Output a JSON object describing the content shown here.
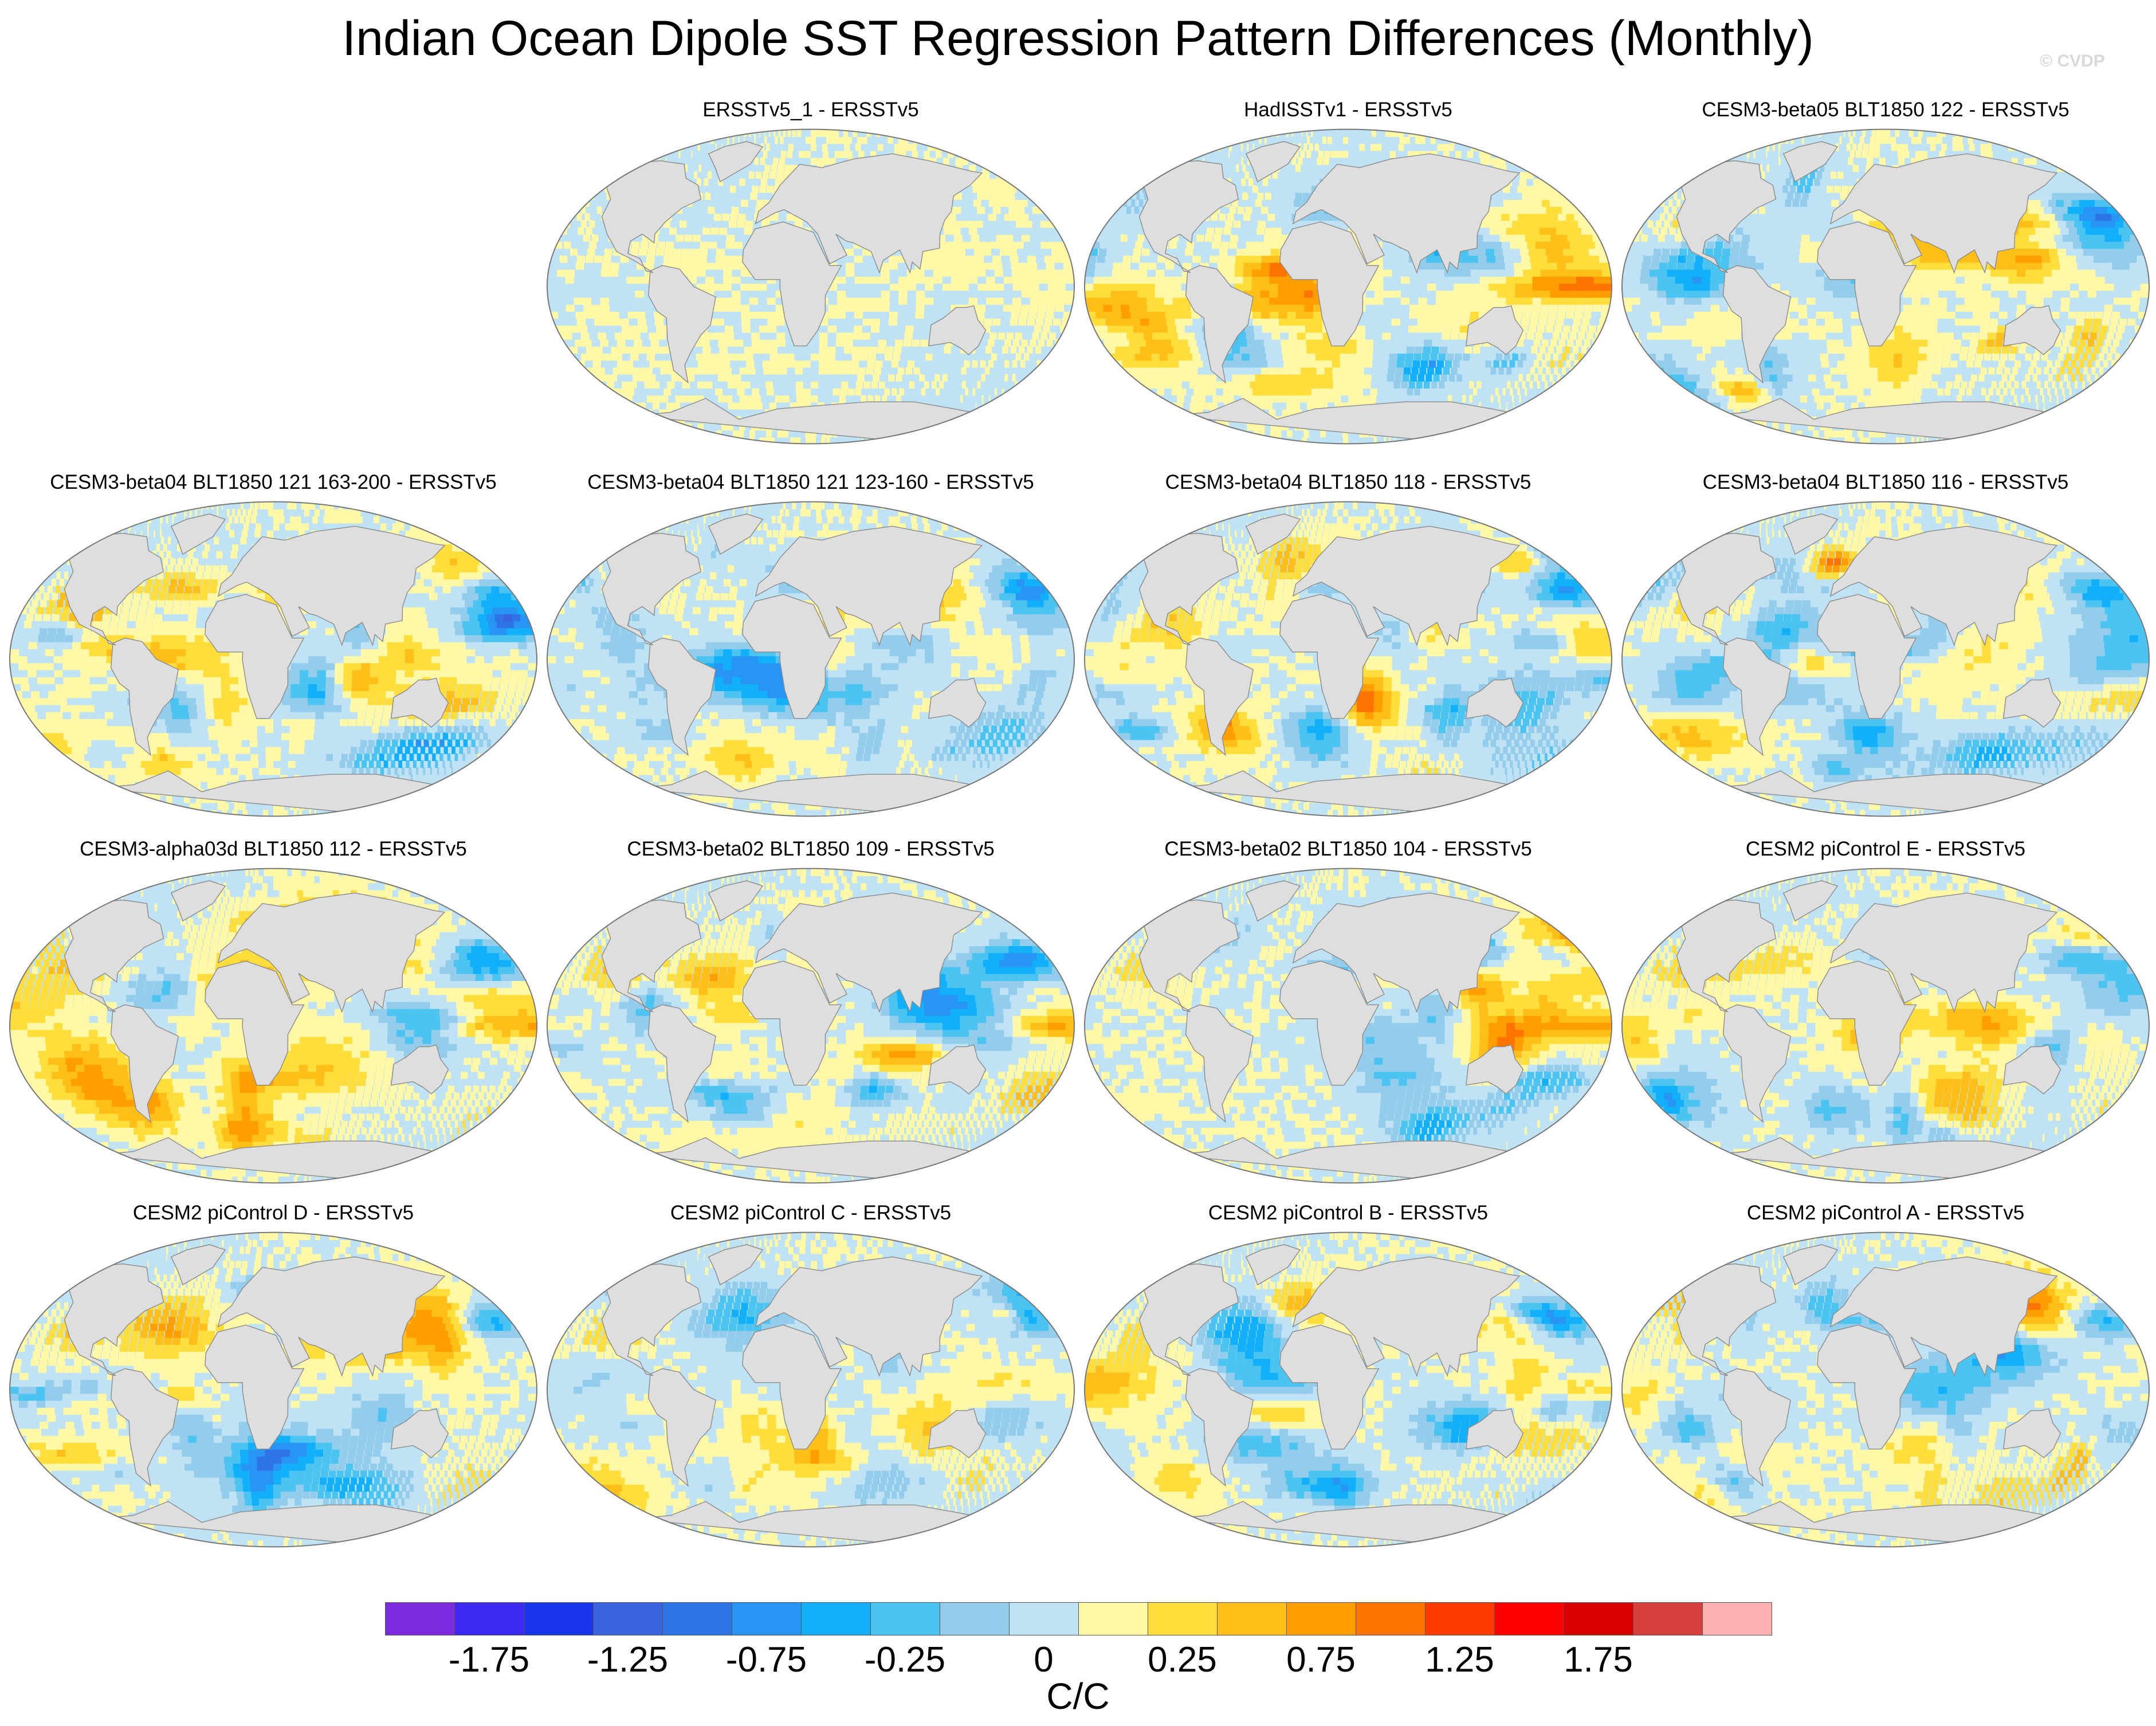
{
  "title": "Indian Ocean Dipole SST Regression Pattern Differences (Monthly)",
  "watermark": "© CVDP",
  "units": "C/C",
  "panels": [
    {
      "title": "ERSSTv5_1 - ERSSTv5",
      "character": "near-zero",
      "seed": 3
    },
    {
      "title": "HadISSTv1 - ERSSTv5",
      "character": "east-pacific-warm",
      "seed": 7
    },
    {
      "title": "CESM3-beta05 BLT1850 122 - ERSSTv5",
      "character": "mixed",
      "seed": 11
    },
    {
      "title": "CESM3-beta04 BLT1850 121 163-200 - ERSSTv5",
      "character": "mixed",
      "seed": 13
    },
    {
      "title": "CESM3-beta04 BLT1850 121 123-160 - ERSSTv5",
      "character": "mixed",
      "seed": 17
    },
    {
      "title": "CESM3-beta04 BLT1850 118 - ERSSTv5",
      "character": "mixed",
      "seed": 19
    },
    {
      "title": "CESM3-beta04 BLT1850 116 - ERSSTv5",
      "character": "north-atlantic-warm",
      "seed": 23
    },
    {
      "title": "CESM3-alpha03d BLT1850 112 - ERSSTv5",
      "character": "pacific-tongue",
      "seed": 29
    },
    {
      "title": "CESM3-beta02 BLT1850 109 - ERSSTv5",
      "character": "pacific-tongue",
      "seed": 31
    },
    {
      "title": "CESM3-beta02 BLT1850 104 - ERSSTv5",
      "character": "pacific-tongue",
      "seed": 37
    },
    {
      "title": "CESM2 piControl E - ERSSTv5",
      "character": "mixed",
      "seed": 41
    },
    {
      "title": "CESM2 piControl D - ERSSTv5",
      "character": "mixed",
      "seed": 43
    },
    {
      "title": "CESM2 piControl C - ERSSTv5",
      "character": "mixed",
      "seed": 47
    },
    {
      "title": "CESM2 piControl B - ERSSTv5",
      "character": "pacific-tongue",
      "seed": 53
    },
    {
      "title": "CESM2 piControl A - ERSSTv5",
      "character": "mixed",
      "seed": 59
    }
  ],
  "chart_data": {
    "type": "heatmap",
    "title": "Indian Ocean Dipole SST Regression Pattern Differences (Monthly)",
    "projection": "global-robinson",
    "units": "C/C",
    "colorbar": {
      "levels": [
        -2.0,
        -1.75,
        -1.5,
        -1.25,
        -1.0,
        -0.75,
        -0.5,
        -0.25,
        0,
        0.25,
        0.5,
        0.75,
        1.0,
        1.25,
        1.5,
        1.75,
        2.0
      ],
      "tick_labels": [
        "-1.75",
        "-1.25",
        "-0.75",
        "-0.25",
        "0",
        "0.25",
        "0.75",
        "1.25",
        "1.75"
      ],
      "colors": [
        "#7b2ae0",
        "#3c28f0",
        "#1a36ec",
        "#3a64de",
        "#2f74e6",
        "#2894f4",
        "#12b0fa",
        "#4cc4f2",
        "#94cdeb",
        "#bfe2f4",
        "#fff8a6",
        "#ffde3c",
        "#ffbf18",
        "#ff9e00",
        "#ff7400",
        "#ff3c00",
        "#ff0000",
        "#d80000",
        "#d83e3e",
        "#ffb0b0"
      ]
    }
  }
}
